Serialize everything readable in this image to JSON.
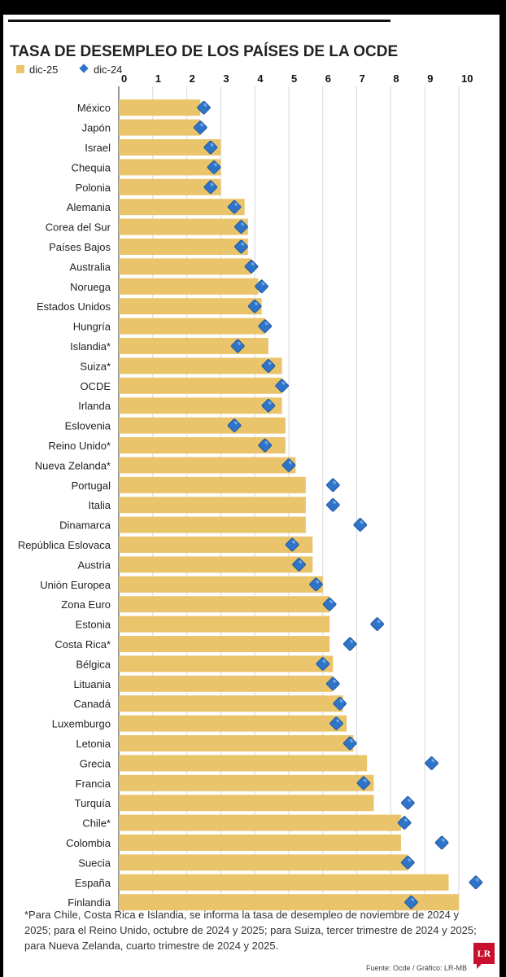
{
  "chart_data": {
    "type": "bar",
    "orientation": "horizontal",
    "title": "TASA DE DESEMPLEO DE LOS PAÍSES DE LA OCDE",
    "xlim": [
      0,
      10
    ],
    "ticks": [
      "0",
      "1",
      "2",
      "3",
      "4",
      "5",
      "6",
      "7",
      "8",
      "9",
      "10"
    ],
    "legend_position": "top-left",
    "series": [
      {
        "name": "dic-25",
        "kind": "bar",
        "color": "#e9c46a"
      },
      {
        "name": "dic-24",
        "kind": "diamond",
        "color": "#2e74c9"
      }
    ],
    "categories": [
      "México",
      "Japón",
      "Israel",
      "Chequia",
      "Polonia",
      "Alemania",
      "Corea del Sur",
      "Países Bajos",
      "Australia",
      "Noruega",
      "Estados Unidos",
      "Hungría",
      "Islandia*",
      "Suiza*",
      "OCDE",
      "Irlanda",
      "Eslovenia",
      "Reino Unido*",
      "Nueva Zelanda*",
      "Portugal",
      "Italia",
      "Dinamarca",
      "República Eslovaca",
      "Austria",
      "Unión Europea",
      "Zona Euro",
      "Estonia",
      "Costa Rica*",
      "Bélgica",
      "Lituania",
      "Canadá",
      "Luxemburgo",
      "Letonia",
      "Grecia",
      "Francia",
      "Turquía",
      "Chile*",
      "Colombia",
      "Suecia",
      "España",
      "Finlandia"
    ],
    "values_dic25": [
      2.4,
      2.4,
      3.0,
      3.0,
      3.0,
      3.7,
      3.8,
      3.8,
      3.9,
      4.1,
      4.2,
      4.3,
      4.4,
      4.8,
      4.8,
      4.8,
      4.9,
      4.9,
      5.2,
      5.5,
      5.5,
      5.5,
      5.7,
      5.7,
      6.0,
      6.2,
      6.2,
      6.2,
      6.3,
      6.3,
      6.6,
      6.7,
      6.9,
      7.3,
      7.5,
      7.5,
      8.3,
      8.3,
      8.5,
      9.7,
      10.0
    ],
    "values_dic24": [
      2.5,
      2.4,
      2.7,
      2.8,
      2.7,
      3.4,
      3.6,
      3.6,
      3.9,
      4.2,
      4.0,
      4.3,
      3.5,
      4.4,
      4.8,
      4.4,
      3.4,
      4.3,
      5.0,
      6.3,
      6.3,
      7.1,
      5.1,
      5.3,
      5.8,
      6.2,
      7.6,
      6.8,
      6.0,
      6.3,
      6.5,
      6.4,
      6.8,
      9.2,
      7.2,
      8.5,
      8.4,
      9.5,
      8.5,
      10.5,
      8.6
    ],
    "footnote": "*Para Chile, Costa Rica e Islandia, se informa la tasa de desempleo de noviembre de 2024 y 2025; para el Reino Unido, octubre de 2024 y 2025; para Suiza, tercer trimestre de 2024 y 2025; para Nueva Zelanda, cuarto trimestre de 2024 y 2025.",
    "source": "Fuente: Ocde / Gráfico: LR-MB",
    "logo": "LR"
  }
}
